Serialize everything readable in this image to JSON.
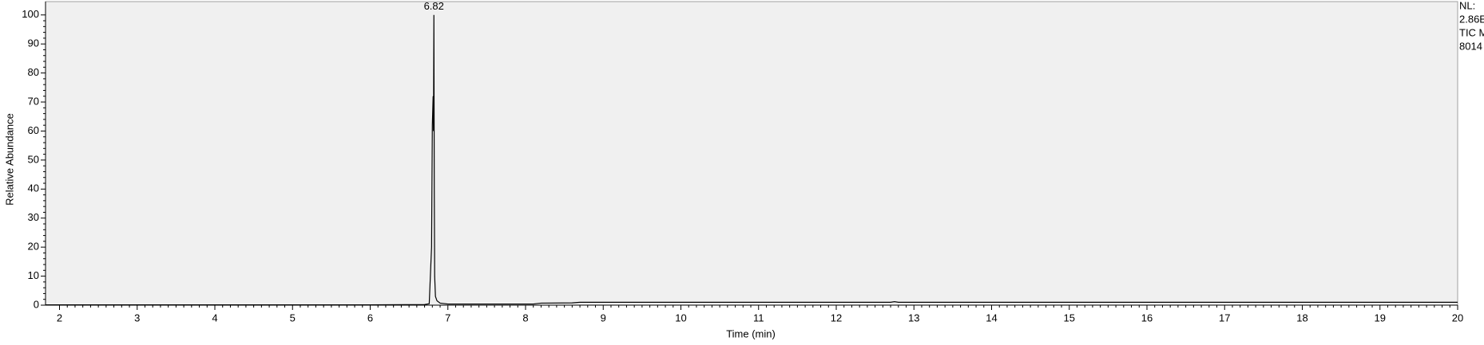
{
  "chart_data": {
    "type": "line",
    "x_label": "Time (min)",
    "y_label": "Relative Abundance",
    "side_texts": [
      "NL:",
      "2.86E",
      "TIC  M",
      "8014"
    ],
    "peak_annotations": [
      {
        "x": 6.82,
        "y": 100
      }
    ],
    "x": [
      1.82,
      3,
      4,
      5,
      6,
      6.7,
      6.76,
      6.79,
      6.8,
      6.81,
      6.815,
      6.82,
      6.825,
      6.83,
      6.84,
      6.86,
      6.9,
      7.0,
      8.1,
      8.2,
      8.6,
      8.7,
      12.7,
      12.75,
      12.8,
      20
    ],
    "series": [
      {
        "name": "TIC",
        "color": "#000000",
        "values": [
          0.1,
          0.1,
          0.1,
          0.1,
          0.1,
          0.2,
          0.5,
          20,
          62,
          72,
          60,
          100,
          40,
          10,
          3,
          1.5,
          0.7,
          0.4,
          0.4,
          0.7,
          0.8,
          1.0,
          1.0,
          1.2,
          1.0,
          1.0
        ]
      }
    ],
    "xlim": [
      1.82,
      20
    ],
    "ylim": [
      0,
      104.6
    ],
    "xticks": [
      2,
      3,
      4,
      5,
      6,
      7,
      8,
      9,
      10,
      11,
      12,
      13,
      14,
      15,
      16,
      17,
      18,
      19,
      20
    ],
    "yticks": [
      0,
      10,
      20,
      30,
      40,
      50,
      60,
      70,
      80,
      90,
      100
    ],
    "plot_background": "#f0f0f0"
  }
}
